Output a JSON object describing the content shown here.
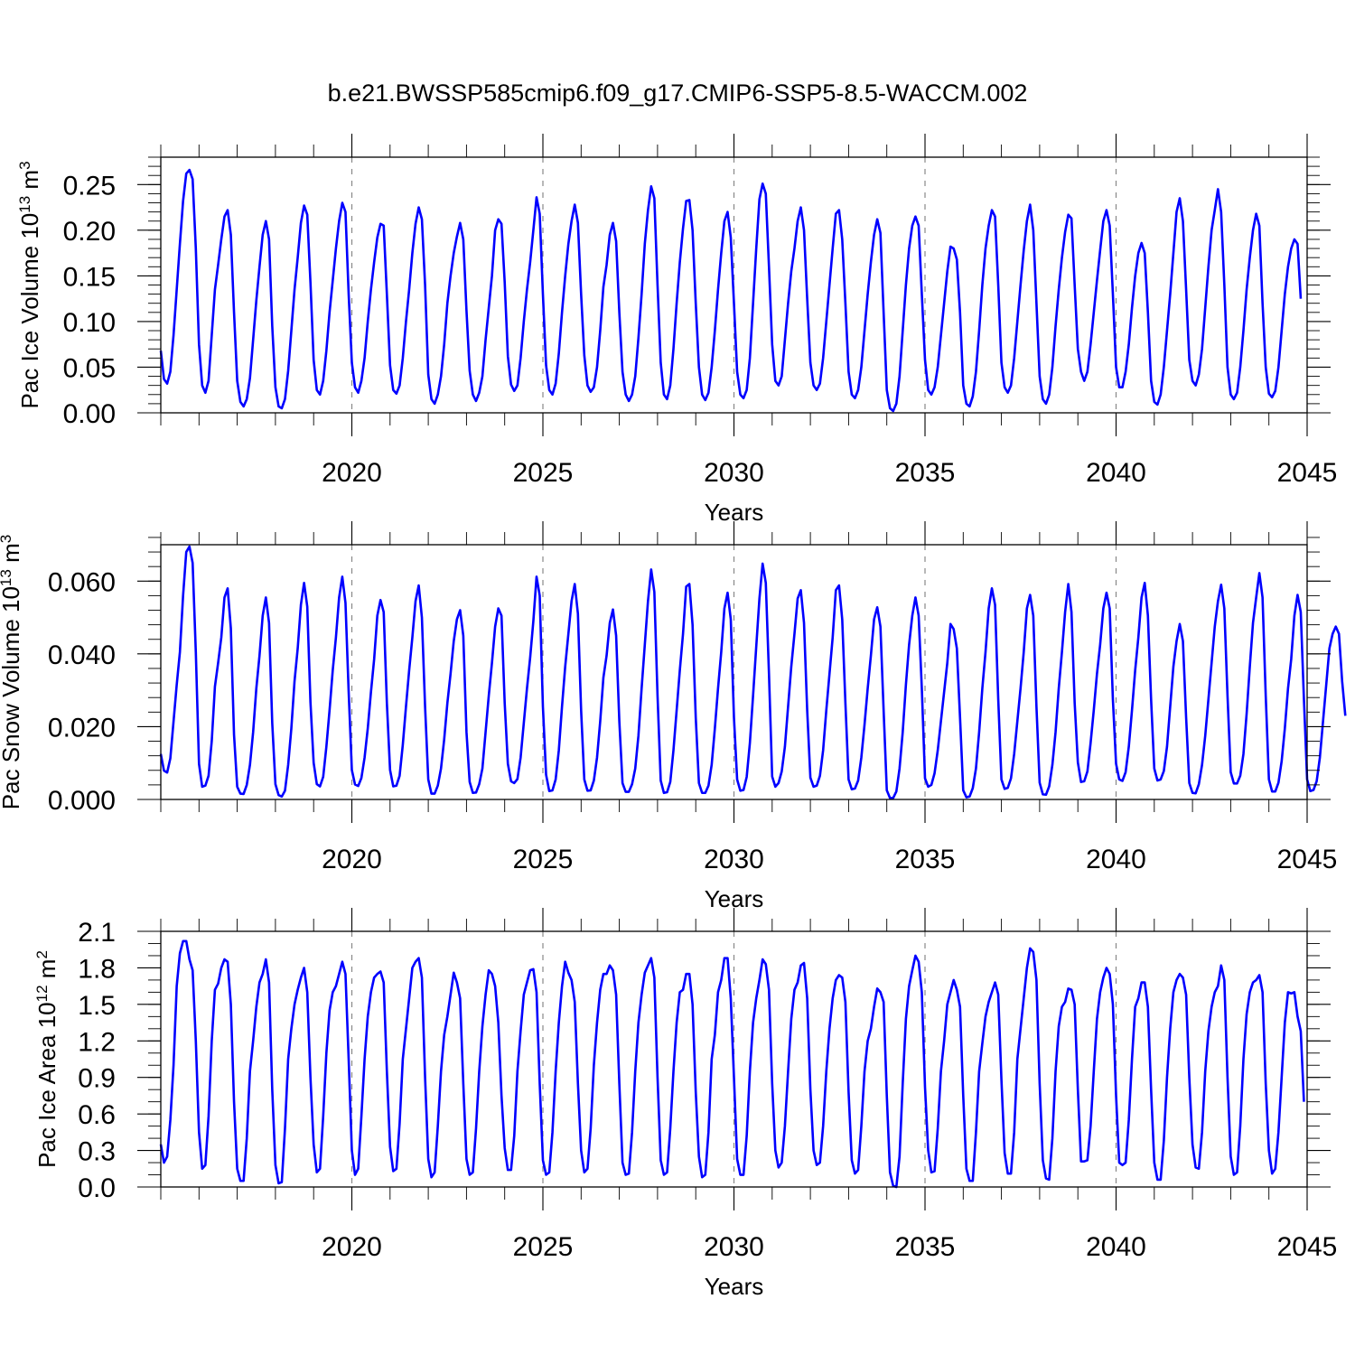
{
  "figure_title": "b.e21.BWSSP585cmip6.f09_g17.CMIP6-SSP5-8.5-WACCM.002",
  "colors": {
    "series": "#0000ff",
    "axes": "#000000",
    "grid": "#888888"
  },
  "chart_data": [
    {
      "type": "line",
      "id": "ice_volume",
      "ylabel": "Pac Ice Volume 10",
      "ylabel_exp": "13",
      "ylabel_unit": " m",
      "ylabel_unit_exp": "3",
      "xlabel": "Years",
      "xlim": [
        2015.0,
        2045.0
      ],
      "ylim": [
        0.0,
        0.28
      ],
      "xticks": [
        2020,
        2025,
        2030,
        2035,
        2040,
        2045
      ],
      "xtick_labels": [
        "2020",
        "2025",
        "2030",
        "2035",
        "2040",
        "2045"
      ],
      "yticks": [
        0.0,
        0.05,
        0.1,
        0.15,
        0.2,
        0.25
      ],
      "ytick_labels": [
        "0.00",
        "0.05",
        "0.10",
        "0.15",
        "0.20",
        "0.25"
      ],
      "yminor_step": 0.01,
      "grid_x": [
        2020,
        2025,
        2030,
        2035,
        2040
      ],
      "series_name": "Pac Ice Volume",
      "x_start": 2015.0,
      "x_step": 0.08333333,
      "values": [
        0.068,
        0.037,
        0.032,
        0.045,
        0.085,
        0.135,
        0.185,
        0.232,
        0.262,
        0.266,
        0.256,
        0.18,
        0.075,
        0.03,
        0.022,
        0.035,
        0.085,
        0.135,
        0.162,
        0.19,
        0.215,
        0.222,
        0.195,
        0.11,
        0.035,
        0.012,
        0.007,
        0.015,
        0.038,
        0.08,
        0.123,
        0.16,
        0.195,
        0.21,
        0.19,
        0.095,
        0.028,
        0.007,
        0.005,
        0.015,
        0.046,
        0.09,
        0.135,
        0.17,
        0.208,
        0.227,
        0.217,
        0.143,
        0.058,
        0.025,
        0.02,
        0.035,
        0.068,
        0.11,
        0.145,
        0.18,
        0.21,
        0.23,
        0.22,
        0.13,
        0.055,
        0.028,
        0.022,
        0.035,
        0.06,
        0.1,
        0.135,
        0.165,
        0.192,
        0.207,
        0.205,
        0.13,
        0.052,
        0.025,
        0.021,
        0.03,
        0.06,
        0.1,
        0.135,
        0.175,
        0.207,
        0.225,
        0.212,
        0.14,
        0.042,
        0.015,
        0.01,
        0.02,
        0.04,
        0.075,
        0.12,
        0.15,
        0.175,
        0.193,
        0.208,
        0.19,
        0.112,
        0.046,
        0.02,
        0.013,
        0.022,
        0.04,
        0.08,
        0.115,
        0.15,
        0.2,
        0.212,
        0.207,
        0.143,
        0.062,
        0.031,
        0.024,
        0.03,
        0.06,
        0.1,
        0.135,
        0.165,
        0.2,
        0.236,
        0.218,
        0.13,
        0.052,
        0.025,
        0.02,
        0.032,
        0.065,
        0.11,
        0.15,
        0.185,
        0.21,
        0.228,
        0.208,
        0.13,
        0.063,
        0.03,
        0.023,
        0.028,
        0.05,
        0.09,
        0.138,
        0.162,
        0.195,
        0.208,
        0.188,
        0.11,
        0.045,
        0.02,
        0.013,
        0.02,
        0.04,
        0.082,
        0.13,
        0.185,
        0.222,
        0.248,
        0.235,
        0.14,
        0.055,
        0.02,
        0.015,
        0.03,
        0.07,
        0.12,
        0.165,
        0.202,
        0.232,
        0.233,
        0.2,
        0.12,
        0.05,
        0.02,
        0.014,
        0.022,
        0.05,
        0.09,
        0.135,
        0.175,
        0.21,
        0.22,
        0.192,
        0.12,
        0.045,
        0.02,
        0.016,
        0.025,
        0.06,
        0.12,
        0.18,
        0.234,
        0.251,
        0.24,
        0.16,
        0.075,
        0.035,
        0.03,
        0.04,
        0.08,
        0.12,
        0.155,
        0.18,
        0.21,
        0.225,
        0.2,
        0.125,
        0.055,
        0.03,
        0.025,
        0.032,
        0.06,
        0.1,
        0.14,
        0.18,
        0.218,
        0.222,
        0.19,
        0.12,
        0.045,
        0.02,
        0.016,
        0.025,
        0.05,
        0.09,
        0.13,
        0.165,
        0.195,
        0.212,
        0.197,
        0.11,
        0.025,
        0.005,
        0.002,
        0.01,
        0.04,
        0.09,
        0.14,
        0.18,
        0.205,
        0.215,
        0.205,
        0.13,
        0.058,
        0.025,
        0.02,
        0.028,
        0.05,
        0.085,
        0.12,
        0.155,
        0.182,
        0.18,
        0.168,
        0.11,
        0.03,
        0.01,
        0.007,
        0.018,
        0.045,
        0.09,
        0.14,
        0.18,
        0.205,
        0.222,
        0.215,
        0.14,
        0.055,
        0.028,
        0.022,
        0.03,
        0.06,
        0.1,
        0.14,
        0.178,
        0.21,
        0.228,
        0.2,
        0.12,
        0.04,
        0.015,
        0.01,
        0.02,
        0.05,
        0.095,
        0.135,
        0.17,
        0.198,
        0.217,
        0.213,
        0.14,
        0.07,
        0.045,
        0.035,
        0.045,
        0.075,
        0.11,
        0.145,
        0.178,
        0.21,
        0.222,
        0.205,
        0.13,
        0.05,
        0.028,
        0.028,
        0.045,
        0.075,
        0.115,
        0.15,
        0.175,
        0.186,
        0.175,
        0.11,
        0.035,
        0.012,
        0.009,
        0.02,
        0.05,
        0.09,
        0.13,
        0.175,
        0.22,
        0.235,
        0.21,
        0.135,
        0.058,
        0.035,
        0.03,
        0.042,
        0.07,
        0.115,
        0.16,
        0.2,
        0.222,
        0.245,
        0.22,
        0.14,
        0.05,
        0.02,
        0.015,
        0.022,
        0.05,
        0.09,
        0.135,
        0.17,
        0.2,
        0.218,
        0.205,
        0.12,
        0.05,
        0.021,
        0.017,
        0.024,
        0.05,
        0.09,
        0.13,
        0.16,
        0.18,
        0.19,
        0.185,
        0.125
      ]
    },
    {
      "type": "line",
      "id": "snow_volume",
      "ylabel": "Pac Snow Volume 10",
      "ylabel_exp": "13",
      "ylabel_unit": " m",
      "ylabel_unit_exp": "3",
      "xlabel": "Years",
      "xlim": [
        2015.0,
        2045.0
      ],
      "ylim": [
        0.0,
        0.07
      ],
      "xticks": [
        2020,
        2025,
        2030,
        2035,
        2040,
        2045
      ],
      "xtick_labels": [
        "2020",
        "2025",
        "2030",
        "2035",
        "2040",
        "2045"
      ],
      "yticks": [
        0.0,
        0.02,
        0.04,
        0.06
      ],
      "ytick_labels": [
        "0.000",
        "0.020",
        "0.040",
        "0.060"
      ],
      "yminor_step": 0.004,
      "grid_x": [
        2020,
        2025,
        2030,
        2035,
        2040
      ],
      "series_name": "Pac Snow Volume",
      "x_start": 2015.0,
      "x_step": 0.08333333,
      "values": [
        0.0125,
        0.0079,
        0.0074,
        0.0113,
        0.0214,
        0.0315,
        0.0405,
        0.056,
        0.068,
        0.0695,
        0.065,
        0.0405,
        0.0098,
        0.0035,
        0.0038,
        0.0065,
        0.016,
        0.031,
        0.0375,
        0.0445,
        0.0555,
        0.058,
        0.047,
        0.0178,
        0.0035,
        0.0016,
        0.0015,
        0.004,
        0.0095,
        0.0185,
        0.0305,
        0.0395,
        0.0505,
        0.0555,
        0.0485,
        0.021,
        0.0042,
        0.0012,
        0.0008,
        0.0024,
        0.0095,
        0.0195,
        0.0325,
        0.0415,
        0.0535,
        0.0595,
        0.053,
        0.0268,
        0.0101,
        0.0042,
        0.0036,
        0.0062,
        0.0145,
        0.0245,
        0.0355,
        0.0445,
        0.0555,
        0.0612,
        0.054,
        0.0296,
        0.0081,
        0.0041,
        0.0037,
        0.0059,
        0.0115,
        0.0195,
        0.0295,
        0.0385,
        0.0505,
        0.0548,
        0.0515,
        0.0265,
        0.0081,
        0.0036,
        0.0038,
        0.0065,
        0.015,
        0.0255,
        0.0355,
        0.0445,
        0.0545,
        0.0588,
        0.05,
        0.0255,
        0.0055,
        0.0016,
        0.0016,
        0.0038,
        0.0085,
        0.0165,
        0.0265,
        0.0345,
        0.0435,
        0.0495,
        0.052,
        0.045,
        0.0185,
        0.0048,
        0.0018,
        0.0019,
        0.0042,
        0.0085,
        0.0185,
        0.0285,
        0.0375,
        0.0475,
        0.0525,
        0.0505,
        0.0265,
        0.0098,
        0.005,
        0.0045,
        0.0056,
        0.0115,
        0.021,
        0.0305,
        0.039,
        0.049,
        0.0612,
        0.056,
        0.0255,
        0.0068,
        0.0023,
        0.0025,
        0.0055,
        0.0135,
        0.0255,
        0.0365,
        0.0455,
        0.0545,
        0.0592,
        0.051,
        0.0245,
        0.0055,
        0.0024,
        0.0025,
        0.0052,
        0.0115,
        0.0215,
        0.0335,
        0.0395,
        0.0485,
        0.0522,
        0.045,
        0.0215,
        0.0045,
        0.0021,
        0.0021,
        0.0042,
        0.0085,
        0.0175,
        0.0305,
        0.0425,
        0.0545,
        0.0632,
        0.057,
        0.0285,
        0.0052,
        0.0018,
        0.002,
        0.0048,
        0.0135,
        0.0245,
        0.0355,
        0.0455,
        0.0585,
        0.0592,
        0.048,
        0.0225,
        0.0045,
        0.0018,
        0.0018,
        0.0038,
        0.0095,
        0.0195,
        0.0305,
        0.0405,
        0.0525,
        0.0568,
        0.0495,
        0.0225,
        0.0055,
        0.0024,
        0.0026,
        0.0062,
        0.0155,
        0.0285,
        0.042,
        0.0552,
        0.0648,
        0.0595,
        0.0345,
        0.0063,
        0.0035,
        0.0045,
        0.0077,
        0.0145,
        0.0255,
        0.0365,
        0.0455,
        0.0552,
        0.0575,
        0.0485,
        0.0245,
        0.006,
        0.0035,
        0.0038,
        0.0065,
        0.0135,
        0.0245,
        0.0345,
        0.0445,
        0.0575,
        0.0588,
        0.0495,
        0.0265,
        0.0055,
        0.0028,
        0.003,
        0.0052,
        0.0115,
        0.0205,
        0.0305,
        0.0395,
        0.0495,
        0.0528,
        0.0475,
        0.0245,
        0.0025,
        0.0004,
        0.0004,
        0.0022,
        0.0085,
        0.0185,
        0.0315,
        0.0425,
        0.0505,
        0.0555,
        0.0505,
        0.0305,
        0.0058,
        0.0035,
        0.004,
        0.0072,
        0.0135,
        0.0215,
        0.0295,
        0.0375,
        0.0482,
        0.0468,
        0.0415,
        0.0225,
        0.0025,
        0.0006,
        0.0008,
        0.0031,
        0.0085,
        0.0185,
        0.0305,
        0.0405,
        0.0525,
        0.058,
        0.0535,
        0.0275,
        0.0055,
        0.0029,
        0.0032,
        0.0058,
        0.0125,
        0.0215,
        0.0305,
        0.0405,
        0.0525,
        0.0562,
        0.0505,
        0.0255,
        0.0046,
        0.0014,
        0.0013,
        0.0036,
        0.0095,
        0.0185,
        0.0305,
        0.0405,
        0.0515,
        0.0592,
        0.0515,
        0.0265,
        0.0102,
        0.0048,
        0.005,
        0.0077,
        0.0155,
        0.0245,
        0.0345,
        0.0425,
        0.0525,
        0.0568,
        0.0525,
        0.0275,
        0.0098,
        0.0055,
        0.0051,
        0.0075,
        0.0145,
        0.0245,
        0.0355,
        0.0445,
        0.0555,
        0.0595,
        0.0505,
        0.0275,
        0.0085,
        0.0052,
        0.0055,
        0.0078,
        0.0145,
        0.0255,
        0.0365,
        0.0435,
        0.0482,
        0.0435,
        0.0225,
        0.0045,
        0.0018,
        0.0017,
        0.0042,
        0.0095,
        0.0175,
        0.0275,
        0.0375,
        0.0475,
        0.0545,
        0.059,
        0.0525,
        0.0285,
        0.0075,
        0.0044,
        0.0044,
        0.0065,
        0.0125,
        0.0235,
        0.0365,
        0.0485,
        0.0555,
        0.0622,
        0.0555,
        0.0285,
        0.0055,
        0.0022,
        0.0022,
        0.0046,
        0.0105,
        0.0195,
        0.0305,
        0.0385,
        0.0505,
        0.0562,
        0.0515,
        0.0275,
        0.0055,
        0.0023,
        0.0026,
        0.005,
        0.0115,
        0.0215,
        0.0315,
        0.0415,
        0.0455,
        0.0475,
        0.0455,
        0.0325,
        0.023
      ]
    },
    {
      "type": "line",
      "id": "ice_area",
      "ylabel": "Pac Ice Area 10",
      "ylabel_exp": "12",
      "ylabel_unit": " m",
      "ylabel_unit_exp": "2",
      "xlabel": "Years",
      "xlim": [
        2015.0,
        2045.0
      ],
      "ylim": [
        0.0,
        2.1
      ],
      "xticks": [
        2020,
        2025,
        2030,
        2035,
        2040,
        2045
      ],
      "xtick_labels": [
        "2020",
        "2025",
        "2030",
        "2035",
        "2040",
        "2045"
      ],
      "yticks": [
        0.0,
        0.3,
        0.6,
        0.9,
        1.2,
        1.5,
        1.8,
        2.1
      ],
      "ytick_labels": [
        "0.0",
        "0.3",
        "0.6",
        "0.9",
        "1.2",
        "1.5",
        "1.8",
        "2.1"
      ],
      "yminor_step": 0.1,
      "grid_x": [
        2020,
        2025,
        2030,
        2035,
        2040
      ],
      "series_name": "Pac Ice Area",
      "x_start": 2015.0,
      "x_step": 0.08333333,
      "values": [
        0.35,
        0.2,
        0.25,
        0.55,
        1.0,
        1.65,
        1.92,
        2.02,
        2.02,
        1.87,
        1.78,
        1.2,
        0.45,
        0.15,
        0.18,
        0.58,
        1.2,
        1.62,
        1.67,
        1.8,
        1.87,
        1.85,
        1.5,
        0.7,
        0.15,
        0.05,
        0.05,
        0.4,
        0.95,
        1.2,
        1.48,
        1.68,
        1.75,
        1.87,
        1.68,
        0.8,
        0.18,
        0.03,
        0.04,
        0.48,
        1.05,
        1.3,
        1.5,
        1.62,
        1.72,
        1.8,
        1.6,
        0.9,
        0.35,
        0.12,
        0.15,
        0.58,
        1.1,
        1.45,
        1.6,
        1.65,
        1.75,
        1.85,
        1.75,
        1.05,
        0.3,
        0.1,
        0.15,
        0.58,
        1.05,
        1.4,
        1.6,
        1.72,
        1.75,
        1.77,
        1.68,
        0.95,
        0.33,
        0.13,
        0.15,
        0.52,
        1.05,
        1.3,
        1.55,
        1.8,
        1.85,
        1.88,
        1.72,
        0.9,
        0.23,
        0.08,
        0.12,
        0.5,
        0.95,
        1.25,
        1.4,
        1.58,
        1.76,
        1.68,
        1.55,
        0.85,
        0.23,
        0.1,
        0.12,
        0.48,
        0.95,
        1.32,
        1.58,
        1.78,
        1.75,
        1.65,
        1.35,
        0.75,
        0.32,
        0.14,
        0.14,
        0.42,
        0.95,
        1.28,
        1.58,
        1.68,
        1.78,
        1.79,
        1.6,
        0.85,
        0.22,
        0.1,
        0.12,
        0.45,
        0.95,
        1.35,
        1.65,
        1.85,
        1.76,
        1.7,
        1.52,
        0.85,
        0.3,
        0.12,
        0.15,
        0.48,
        1.0,
        1.35,
        1.62,
        1.75,
        1.75,
        1.82,
        1.78,
        1.58,
        0.85,
        0.2,
        0.1,
        0.11,
        0.45,
        0.95,
        1.35,
        1.58,
        1.76,
        1.82,
        1.88,
        1.72,
        0.9,
        0.22,
        0.1,
        0.12,
        0.48,
        0.95,
        1.35,
        1.6,
        1.62,
        1.75,
        1.75,
        1.5,
        0.78,
        0.25,
        0.08,
        0.1,
        0.45,
        1.05,
        1.25,
        1.6,
        1.7,
        1.88,
        1.88,
        1.55,
        0.9,
        0.23,
        0.1,
        0.1,
        0.42,
        0.95,
        1.35,
        1.55,
        1.7,
        1.87,
        1.83,
        1.62,
        0.85,
        0.3,
        0.16,
        0.2,
        0.5,
        0.95,
        1.38,
        1.62,
        1.68,
        1.82,
        1.84,
        1.55,
        0.8,
        0.3,
        0.18,
        0.2,
        0.5,
        0.95,
        1.3,
        1.55,
        1.7,
        1.74,
        1.72,
        1.52,
        0.78,
        0.22,
        0.11,
        0.14,
        0.5,
        0.95,
        1.2,
        1.3,
        1.48,
        1.63,
        1.6,
        1.52,
        0.75,
        0.12,
        0.01,
        0.0,
        0.25,
        0.85,
        1.38,
        1.65,
        1.78,
        1.9,
        1.85,
        1.6,
        0.82,
        0.3,
        0.12,
        0.13,
        0.48,
        0.95,
        1.2,
        1.5,
        1.6,
        1.7,
        1.62,
        1.48,
        0.75,
        0.15,
        0.05,
        0.05,
        0.45,
        0.95,
        1.18,
        1.4,
        1.52,
        1.6,
        1.68,
        1.58,
        0.88,
        0.28,
        0.11,
        0.11,
        0.45,
        1.05,
        1.3,
        1.55,
        1.8,
        1.96,
        1.93,
        1.7,
        0.85,
        0.22,
        0.07,
        0.06,
        0.4,
        0.95,
        1.32,
        1.48,
        1.52,
        1.63,
        1.62,
        1.5,
        0.8,
        0.21,
        0.21,
        0.22,
        0.5,
        0.95,
        1.38,
        1.6,
        1.72,
        1.8,
        1.75,
        1.5,
        0.75,
        0.2,
        0.18,
        0.2,
        0.55,
        1.05,
        1.48,
        1.55,
        1.68,
        1.68,
        1.48,
        0.8,
        0.2,
        0.06,
        0.06,
        0.38,
        0.9,
        1.3,
        1.6,
        1.7,
        1.75,
        1.72,
        1.58,
        0.9,
        0.35,
        0.16,
        0.15,
        0.45,
        0.95,
        1.28,
        1.48,
        1.6,
        1.65,
        1.82,
        1.7,
        0.9,
        0.25,
        0.1,
        0.12,
        0.5,
        1.05,
        1.42,
        1.6,
        1.68,
        1.7,
        1.74,
        1.6,
        0.85,
        0.3,
        0.11,
        0.15,
        0.45,
        0.9,
        1.35,
        1.6,
        1.59,
        1.6,
        1.4,
        1.28,
        0.7
      ]
    }
  ]
}
